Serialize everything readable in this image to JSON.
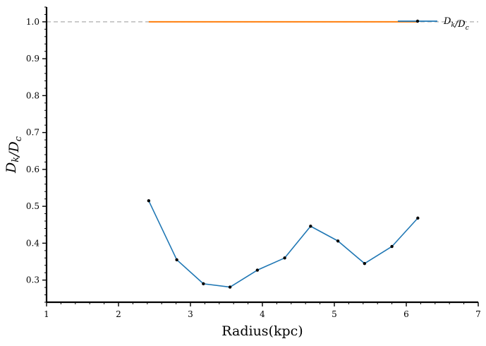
{
  "chart_data": {
    "type": "line",
    "xlabel": "Radius(kpc)",
    "ylabel": "D_k/D_c",
    "xlim": [
      1,
      7
    ],
    "ylim": [
      0.24,
      1.04
    ],
    "xticks": [
      1,
      2,
      3,
      4,
      5,
      6,
      7
    ],
    "yticks": [
      0.3,
      0.4,
      0.5,
      0.6,
      0.7,
      0.8,
      0.9,
      1.0
    ],
    "ytick_labels": [
      "0.3",
      "0.4",
      "0.5",
      "0.6",
      "0.7",
      "0.8",
      "0.9",
      "1.0"
    ],
    "reference_line": {
      "y": 1.0,
      "style": "dashed",
      "color": "#bbbbbb"
    },
    "series": [
      {
        "name": "D_k/D_c",
        "color": "#1f77b4",
        "marker": "dot",
        "x": [
          2.42,
          2.81,
          3.18,
          3.55,
          3.93,
          4.31,
          4.67,
          5.05,
          5.42,
          5.8,
          6.16
        ],
        "y": [
          0.515,
          0.355,
          0.29,
          0.281,
          0.327,
          0.36,
          0.446,
          0.406,
          0.345,
          0.391,
          0.468
        ]
      },
      {
        "color": "#ff7f0e",
        "marker": "none",
        "x": [
          2.42,
          6.16
        ],
        "y": [
          1.0,
          1.0
        ]
      }
    ],
    "legend": {
      "location": "top-right",
      "entries": [
        {
          "label": "D_k/D_c",
          "series_index": 0
        }
      ]
    }
  }
}
